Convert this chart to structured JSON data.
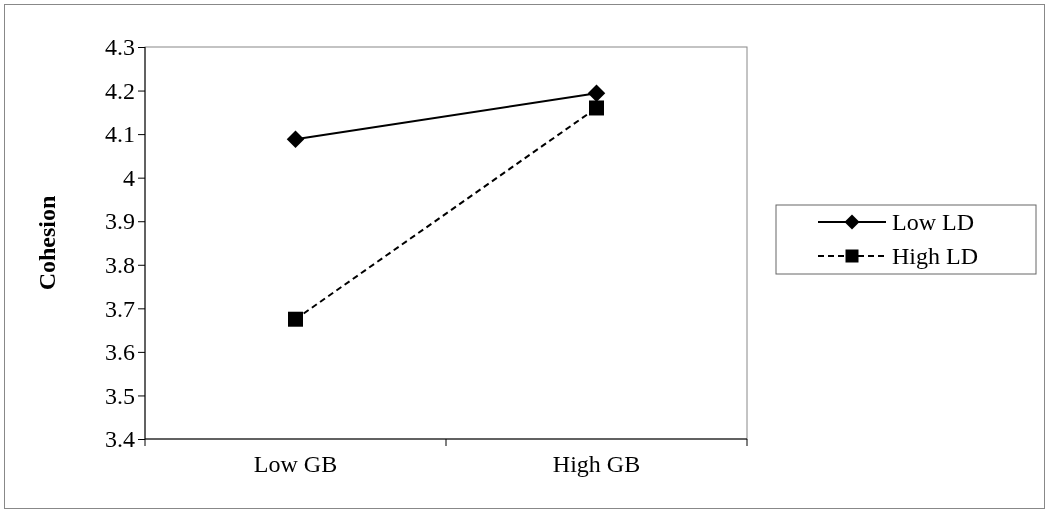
{
  "chart_data": {
    "type": "line",
    "ylabel": "Cohesion",
    "categories": [
      "Low GB",
      "High GB"
    ],
    "series": [
      {
        "name": "Low LD",
        "color": "#000000",
        "values": [
          4.088,
          4.194
        ],
        "marker": "diamond",
        "line_style": "solid"
      },
      {
        "name": "High LD",
        "color": "#000000",
        "values": [
          3.675,
          4.16
        ],
        "marker": "square",
        "line_style": "dashed"
      }
    ],
    "ylim": [
      3.4,
      4.3
    ],
    "yticks": [
      3.4,
      3.5,
      3.6,
      3.7,
      3.8,
      3.9,
      4,
      4.1,
      4.2,
      4.3
    ],
    "grid": false,
    "legend": "right"
  }
}
